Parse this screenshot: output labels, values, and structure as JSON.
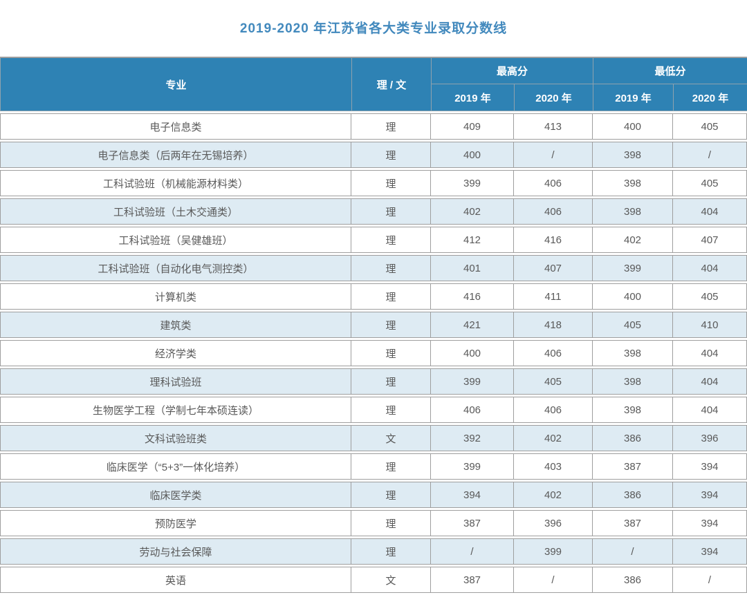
{
  "title": "2019-2020 年江苏省各大类专业录取分数线",
  "colors": {
    "header_bg": "#2E82B4",
    "header_text": "#FFFFFF",
    "row_alt_bg": "#DEEBF3",
    "title_color": "#4289BD",
    "border_color": "#9E9E9E",
    "cell_text": "#595959"
  },
  "table": {
    "header": {
      "major": "专业",
      "track": "理 / 文",
      "max_group": "最高分",
      "min_group": "最低分",
      "year_2019": "2019 年",
      "year_2020": "2020 年"
    },
    "rows": [
      {
        "major": "电子信息类",
        "track": "理",
        "max2019": "409",
        "max2020": "413",
        "min2019": "400",
        "min2020": "405"
      },
      {
        "major": "电子信息类（后两年在无锡培养）",
        "track": "理",
        "max2019": "400",
        "max2020": "/",
        "min2019": "398",
        "min2020": "/"
      },
      {
        "major": "工科试验班（机械能源材料类）",
        "track": "理",
        "max2019": "399",
        "max2020": "406",
        "min2019": "398",
        "min2020": "405"
      },
      {
        "major": "工科试验班（土木交通类）",
        "track": "理",
        "max2019": "402",
        "max2020": "406",
        "min2019": "398",
        "min2020": "404"
      },
      {
        "major": "工科试验班（吴健雄班）",
        "track": "理",
        "max2019": "412",
        "max2020": "416",
        "min2019": "402",
        "min2020": "407"
      },
      {
        "major": "工科试验班（自动化电气测控类）",
        "track": "理",
        "max2019": "401",
        "max2020": "407",
        "min2019": "399",
        "min2020": "404"
      },
      {
        "major": "计算机类",
        "track": "理",
        "max2019": "416",
        "max2020": "411",
        "min2019": "400",
        "min2020": "405"
      },
      {
        "major": "建筑类",
        "track": "理",
        "max2019": "421",
        "max2020": "418",
        "min2019": "405",
        "min2020": "410"
      },
      {
        "major": "经济学类",
        "track": "理",
        "max2019": "400",
        "max2020": "406",
        "min2019": "398",
        "min2020": "404"
      },
      {
        "major": "理科试验班",
        "track": "理",
        "max2019": "399",
        "max2020": "405",
        "min2019": "398",
        "min2020": "404"
      },
      {
        "major": "生物医学工程（学制七年本硕连读）",
        "track": "理",
        "max2019": "406",
        "max2020": "406",
        "min2019": "398",
        "min2020": "404"
      },
      {
        "major": "文科试验班类",
        "track": "文",
        "max2019": "392",
        "max2020": "402",
        "min2019": "386",
        "min2020": "396"
      },
      {
        "major": "临床医学（“5+3”一体化培养）",
        "track": "理",
        "max2019": "399",
        "max2020": "403",
        "min2019": "387",
        "min2020": "394"
      },
      {
        "major": "临床医学类",
        "track": "理",
        "max2019": "394",
        "max2020": "402",
        "min2019": "386",
        "min2020": "394"
      },
      {
        "major": "预防医学",
        "track": "理",
        "max2019": "387",
        "max2020": "396",
        "min2019": "387",
        "min2020": "394"
      },
      {
        "major": "劳动与社会保障",
        "track": "理",
        "max2019": "/",
        "max2020": "399",
        "min2019": "/",
        "min2020": "394"
      },
      {
        "major": "英语",
        "track": "文",
        "max2019": "387",
        "max2020": "/",
        "min2019": "386",
        "min2020": "/"
      }
    ]
  }
}
